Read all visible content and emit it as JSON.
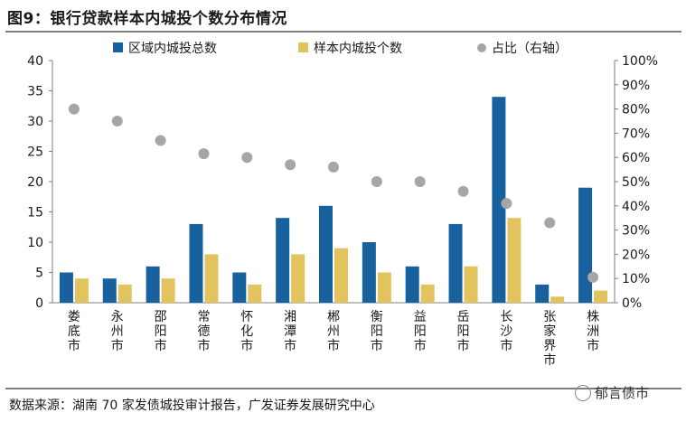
{
  "header": {
    "title": "图9：银行贷款样本内城投个数分布情况"
  },
  "footer": {
    "source": "数据来源：湖南 70 家发债城投审计报告，广发证券发展研究中心",
    "watermark": "郁言债市"
  },
  "colors": {
    "total": "#17619f",
    "sample": "#e2c35e",
    "ratio": "#a6a6a6"
  },
  "chart_data": {
    "type": "bar",
    "categories": [
      "娄底市",
      "永州市",
      "邵阳市",
      "常德市",
      "怀化市",
      "湘潭市",
      "郴州市",
      "衡阳市",
      "益阳市",
      "岳阳市",
      "长沙市",
      "张家界市",
      "株洲市"
    ],
    "series": [
      {
        "name": "区域内城投总数",
        "type": "bar",
        "axis": "left",
        "values": [
          5,
          4,
          6,
          13,
          5,
          14,
          16,
          10,
          6,
          13,
          34,
          3,
          19
        ]
      },
      {
        "name": "样本内城投个数",
        "type": "bar",
        "axis": "left",
        "values": [
          4,
          3,
          4,
          8,
          3,
          8,
          9,
          5,
          3,
          6,
          14,
          1,
          2
        ]
      },
      {
        "name": "占比（右轴）",
        "type": "scatter",
        "axis": "right",
        "values": [
          80,
          75,
          67,
          61.5,
          60,
          57,
          56,
          50,
          50,
          46,
          41,
          33,
          10.5
        ]
      }
    ],
    "y_left": {
      "min": 0,
      "max": 40,
      "ticks": [
        "0",
        "5",
        "10",
        "15",
        "20",
        "25",
        "30",
        "35",
        "40"
      ]
    },
    "y_right": {
      "min": 0,
      "max": 100,
      "ticks": [
        "0%",
        "10%",
        "20%",
        "30%",
        "40%",
        "50%",
        "60%",
        "70%",
        "80%",
        "90%",
        "100%"
      ]
    }
  }
}
